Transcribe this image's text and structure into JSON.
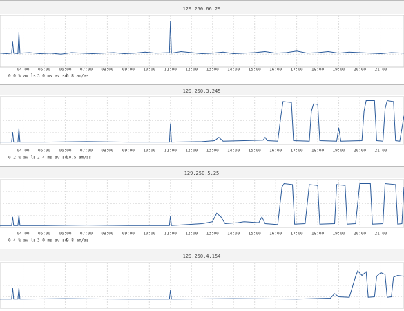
{
  "chart_data": [
    {
      "type": "line",
      "title": "129.250.66.29",
      "xlim": [
        2.9,
        22.1
      ],
      "ylim": [
        0,
        100
      ],
      "grid": true,
      "xticks": [
        {
          "value": 4,
          "label": "04:00"
        },
        {
          "value": 5,
          "label": "05:00"
        },
        {
          "value": 6,
          "label": "06:00"
        },
        {
          "value": 7,
          "label": "07:00"
        },
        {
          "value": 8,
          "label": "08:00"
        },
        {
          "value": 9,
          "label": "09:00"
        },
        {
          "value": 10,
          "label": "10:00"
        },
        {
          "value": 11,
          "label": "11:00"
        },
        {
          "value": 12,
          "label": "12:00"
        },
        {
          "value": 13,
          "label": "13:00"
        },
        {
          "value": 14,
          "label": "14:00"
        },
        {
          "value": 15,
          "label": "15:00"
        },
        {
          "value": 16,
          "label": "16:00"
        },
        {
          "value": 17,
          "label": "17:00"
        },
        {
          "value": 18,
          "label": "18:00"
        },
        {
          "value": 19,
          "label": "19:00"
        },
        {
          "value": 20,
          "label": "20:00"
        },
        {
          "value": 21,
          "label": "21:00"
        }
      ],
      "stats": [
        "0.0 % av ls",
        "3.0 ms av sd",
        "6.8 am/as"
      ],
      "x": [
        2.9,
        3.2,
        3.45,
        3.5,
        3.55,
        3.75,
        3.8,
        3.85,
        4.3,
        4.8,
        5.3,
        5.8,
        6.3,
        6.8,
        7.3,
        7.8,
        8.3,
        8.8,
        9.3,
        9.8,
        10.3,
        10.95,
        11.0,
        11.05,
        11.5,
        12,
        12.5,
        13,
        13.5,
        14,
        14.5,
        15,
        15.5,
        16,
        16.5,
        17,
        17.5,
        18,
        18.5,
        19,
        19.5,
        20,
        20.5,
        21,
        21.5,
        22.1
      ],
      "series": [
        {
          "color": "#2a5a9a",
          "values": [
            27,
            26,
            27,
            49,
            27,
            26,
            67,
            27,
            28,
            26,
            27,
            25,
            28,
            27,
            26,
            27,
            28,
            26,
            27,
            29,
            27,
            28,
            89,
            27,
            30,
            28,
            26,
            27,
            29,
            26,
            27,
            28,
            30,
            27,
            28,
            31,
            27,
            28,
            30,
            27,
            29,
            28,
            27,
            26,
            28,
            27
          ]
        }
      ]
    },
    {
      "type": "line",
      "title": "129.250.3.245",
      "xlim": [
        2.9,
        22.1
      ],
      "ylim": [
        0,
        100
      ],
      "grid": true,
      "xticks": [
        {
          "value": 4,
          "label": "04:00"
        },
        {
          "value": 5,
          "label": "05:00"
        },
        {
          "value": 6,
          "label": "06:00"
        },
        {
          "value": 7,
          "label": "07:00"
        },
        {
          "value": 8,
          "label": "08:00"
        },
        {
          "value": 9,
          "label": "09:00"
        },
        {
          "value": 10,
          "label": "10:00"
        },
        {
          "value": 11,
          "label": "11:00"
        },
        {
          "value": 12,
          "label": "12:00"
        },
        {
          "value": 13,
          "label": "13:00"
        },
        {
          "value": 14,
          "label": "14:00"
        },
        {
          "value": 15,
          "label": "15:00"
        },
        {
          "value": 16,
          "label": "16:00"
        },
        {
          "value": 17,
          "label": "17:00"
        },
        {
          "value": 18,
          "label": "18:00"
        },
        {
          "value": 19,
          "label": "19:00"
        },
        {
          "value": 20,
          "label": "20:00"
        },
        {
          "value": 21,
          "label": "21:00"
        }
      ],
      "stats": [
        "0.2 % av ls",
        "2.4 ms av sd",
        "10.5 am/as"
      ],
      "x": [
        2.9,
        3.45,
        3.5,
        3.55,
        3.75,
        3.8,
        3.85,
        5,
        7,
        9,
        10.95,
        11.0,
        11.05,
        12.5,
        13.1,
        13.3,
        13.5,
        14.5,
        15.4,
        15.5,
        15.6,
        16.1,
        16.25,
        16.35,
        16.75,
        16.85,
        17.6,
        17.7,
        17.8,
        18.0,
        18.1,
        18.9,
        19.0,
        19.1,
        20.1,
        20.2,
        20.3,
        20.7,
        20.8,
        21.1,
        21.2,
        21.3,
        21.6,
        21.7,
        21.9,
        22.1
      ],
      "series": [
        {
          "color": "#2a5a9a",
          "values": [
            5,
            5,
            26,
            5,
            5,
            34,
            5,
            5,
            6,
            5,
            5,
            44,
            5,
            6,
            8,
            15,
            7,
            8,
            9,
            15,
            8,
            7,
            60,
            90,
            88,
            8,
            7,
            70,
            85,
            84,
            8,
            7,
            35,
            7,
            8,
            70,
            92,
            92,
            8,
            7,
            75,
            92,
            90,
            8,
            7,
            60
          ]
        }
      ]
    },
    {
      "type": "line",
      "title": "129.250.5.25",
      "xlim": [
        2.9,
        22.1
      ],
      "ylim": [
        0,
        100
      ],
      "grid": true,
      "xticks": [
        {
          "value": 4,
          "label": "04:00"
        },
        {
          "value": 5,
          "label": "05:00"
        },
        {
          "value": 6,
          "label": "06:00"
        },
        {
          "value": 7,
          "label": "07:00"
        },
        {
          "value": 8,
          "label": "08:00"
        },
        {
          "value": 9,
          "label": "09:00"
        },
        {
          "value": 10,
          "label": "10:00"
        },
        {
          "value": 11,
          "label": "11:00"
        },
        {
          "value": 12,
          "label": "12:00"
        },
        {
          "value": 13,
          "label": "13:00"
        },
        {
          "value": 14,
          "label": "14:00"
        },
        {
          "value": 15,
          "label": "15:00"
        },
        {
          "value": 16,
          "label": "16:00"
        },
        {
          "value": 17,
          "label": "17:00"
        },
        {
          "value": 18,
          "label": "18:00"
        },
        {
          "value": 19,
          "label": "19:00"
        },
        {
          "value": 20,
          "label": "20:00"
        },
        {
          "value": 21,
          "label": "21:00"
        }
      ],
      "stats": [
        "0.4 % av ls",
        "3.0 ms av sd",
        "9.8 am/as"
      ],
      "x": [
        2.9,
        3.45,
        3.5,
        3.55,
        3.75,
        3.8,
        3.85,
        5,
        7,
        9,
        10.95,
        11.0,
        11.05,
        12.5,
        13.0,
        13.2,
        13.4,
        13.6,
        14.2,
        14.5,
        15.2,
        15.35,
        15.5,
        16.1,
        16.3,
        16.4,
        16.8,
        16.9,
        17.4,
        17.6,
        18.0,
        18.1,
        18.8,
        18.9,
        19.3,
        19.4,
        19.8,
        20.0,
        20.5,
        20.6,
        21.1,
        21.2,
        21.7,
        21.8,
        22.0,
        22.1
      ],
      "series": [
        {
          "color": "#2a5a9a",
          "values": [
            4,
            4,
            22,
            4,
            4,
            26,
            4,
            4,
            5,
            4,
            4,
            24,
            4,
            8,
            12,
            30,
            22,
            8,
            10,
            12,
            10,
            22,
            8,
            6,
            85,
            92,
            90,
            7,
            8,
            90,
            88,
            7,
            8,
            90,
            88,
            7,
            8,
            92,
            92,
            7,
            8,
            92,
            90,
            7,
            8,
            85
          ]
        }
      ]
    },
    {
      "type": "line",
      "title": "129.250.4.154",
      "xlim": [
        2.9,
        22.1
      ],
      "ylim": [
        0,
        100
      ],
      "grid": true,
      "x": [
        2.9,
        3.45,
        3.5,
        3.55,
        3.75,
        3.8,
        3.85,
        6,
        9,
        10.95,
        11.0,
        11.05,
        14,
        17,
        18.6,
        18.8,
        19.0,
        19.5,
        19.8,
        19.9,
        20.1,
        20.3,
        20.4,
        20.7,
        20.8,
        21.0,
        21.2,
        21.3,
        21.5,
        21.6,
        21.8,
        22.1
      ],
      "series": [
        {
          "color": "#2a5a9a",
          "values": [
            20,
            20,
            45,
            20,
            20,
            45,
            20,
            21,
            20,
            20,
            40,
            20,
            21,
            20,
            22,
            32,
            25,
            24,
            70,
            82,
            72,
            80,
            24,
            25,
            70,
            78,
            74,
            24,
            25,
            68,
            72,
            70
          ]
        }
      ]
    }
  ]
}
